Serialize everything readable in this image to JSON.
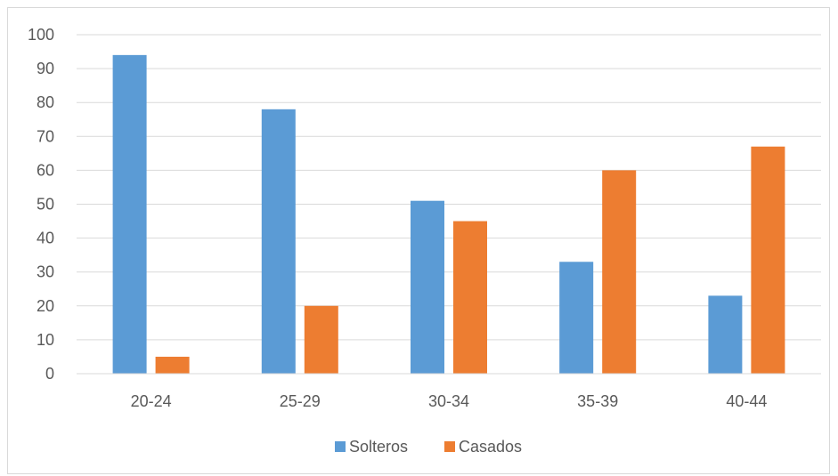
{
  "chart_data": {
    "type": "bar",
    "categories": [
      "20-24",
      "25-29",
      "30-34",
      "35-39",
      "40-44"
    ],
    "series": [
      {
        "name": "Solteros",
        "values": [
          94,
          78,
          51,
          33,
          23
        ],
        "color": "#5b9bd5"
      },
      {
        "name": "Casados",
        "values": [
          5,
          20,
          45,
          60,
          67
        ],
        "color": "#ed7d31"
      }
    ],
    "title": "",
    "xlabel": "",
    "ylabel": "",
    "ylim": [
      0,
      100
    ],
    "yticks": [
      0,
      10,
      20,
      30,
      40,
      50,
      60,
      70,
      80,
      90,
      100
    ],
    "grid": true,
    "legend_position": "bottom"
  }
}
